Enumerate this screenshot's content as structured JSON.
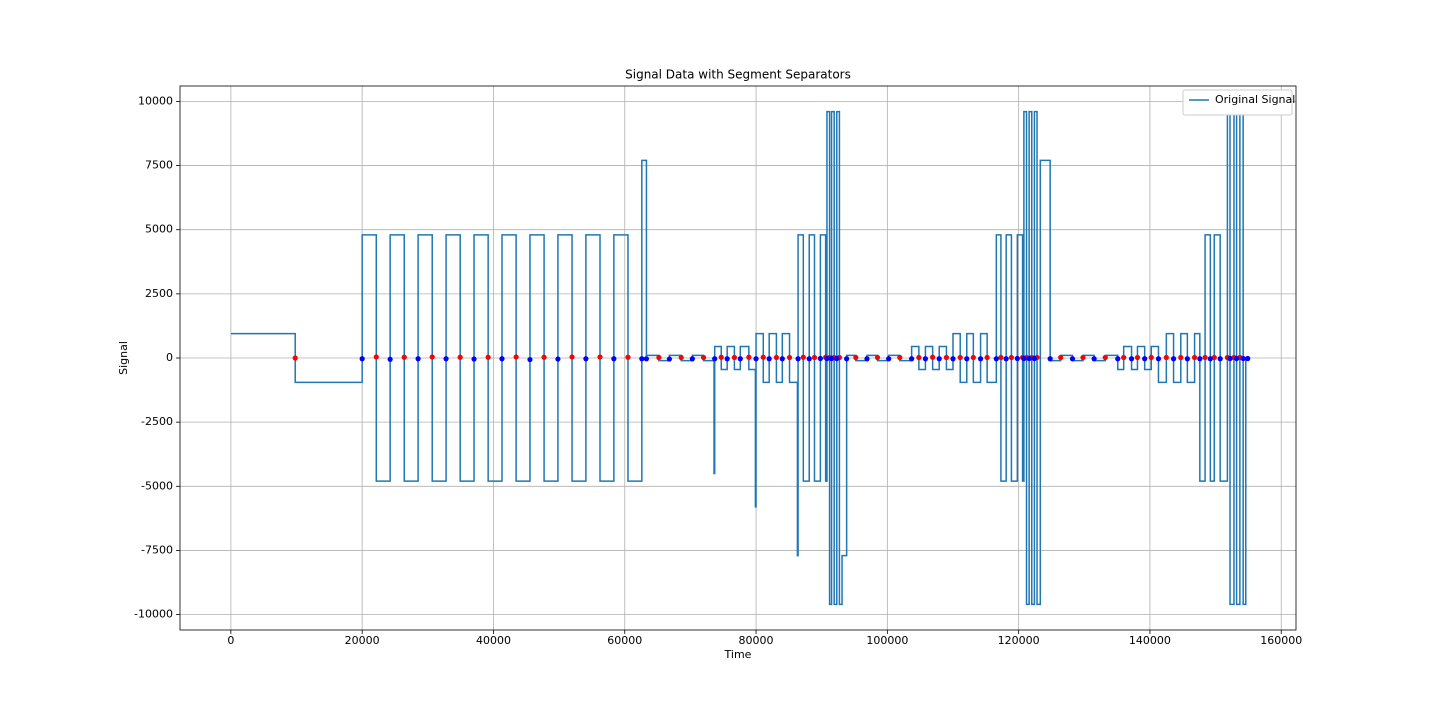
{
  "chart_data": {
    "type": "line",
    "title": "Signal Data with Segment Separators",
    "x_label": "Time",
    "y_label": "Signal",
    "drawstyle": "steps-post",
    "grid": true,
    "legend": "upper right",
    "xlim": [
      -7750,
      162250
    ],
    "ylim": [
      -10600,
      10600
    ],
    "xticks": [
      0,
      20000,
      40000,
      60000,
      80000,
      100000,
      120000,
      140000,
      160000
    ],
    "yticks": [
      -10000,
      -7500,
      -5000,
      -2500,
      0,
      2500,
      5000,
      7500,
      10000
    ],
    "series": [
      {
        "name": "Original Signal",
        "color": "#1f77b4",
        "x": [
          0,
          9800,
          20000,
          22150,
          24260,
          26410,
          28520,
          30670,
          32780,
          34930,
          37040,
          39190,
          41300,
          43450,
          45560,
          47710,
          49820,
          51970,
          54080,
          56230,
          58340,
          60490,
          62600,
          63300,
          65200,
          66800,
          68600,
          70300,
          72000,
          73600,
          73700,
          74700,
          75600,
          76700,
          77600,
          78900,
          79900,
          80000,
          81100,
          82000,
          83100,
          84000,
          85100,
          86300,
          86400,
          87200,
          88100,
          88900,
          89800,
          90600,
          90800,
          91200,
          91500,
          91900,
          92300,
          92700,
          93100,
          93800,
          95200,
          96900,
          98500,
          100200,
          101900,
          103700,
          104800,
          105800,
          106900,
          107900,
          109000,
          110000,
          111100,
          112100,
          113100,
          114200,
          115200,
          116600,
          117300,
          118100,
          118900,
          119800,
          120600,
          120800,
          121200,
          121600,
          122000,
          122400,
          122800,
          123300,
          124800,
          126400,
          128200,
          129800,
          131500,
          133200,
          135100,
          136000,
          137200,
          138100,
          139200,
          140200,
          141300,
          142500,
          143600,
          144700,
          145700,
          146800,
          147600,
          148400,
          149200,
          149800,
          150700,
          151800,
          152200,
          152800,
          153200,
          153700,
          154200,
          154600,
          155000
        ],
        "values": [
          950,
          -950,
          4800,
          -4800,
          4800,
          -4800,
          4800,
          -4800,
          4800,
          -4800,
          4800,
          -4800,
          4800,
          -4800,
          4800,
          -4800,
          4800,
          -4800,
          4800,
          -4800,
          4800,
          -4800,
          7700,
          100,
          -100,
          100,
          -100,
          100,
          -100,
          -4500,
          450,
          -450,
          450,
          -450,
          450,
          -450,
          -5800,
          950,
          -950,
          950,
          -950,
          950,
          -950,
          -7700,
          4800,
          -4800,
          4800,
          -4800,
          4800,
          -4800,
          9600,
          -9600,
          9600,
          -9600,
          9600,
          -9600,
          -7700,
          100,
          -100,
          100,
          -100,
          100,
          -100,
          450,
          -450,
          450,
          -450,
          450,
          -450,
          950,
          -950,
          950,
          -950,
          950,
          -950,
          4800,
          -4800,
          4800,
          -4800,
          4800,
          -4800,
          9600,
          -9600,
          9600,
          -9600,
          9600,
          -9600,
          7700,
          -100,
          100,
          -100,
          100,
          -100,
          100,
          -450,
          450,
          -450,
          450,
          -450,
          450,
          -950,
          950,
          -950,
          950,
          -950,
          950,
          -4800,
          4800,
          -4800,
          4800,
          -4800,
          9600,
          -9600,
          9600,
          -9600,
          9600,
          -9600,
          0,
          0
        ]
      },
      {
        "color": "red",
        "marker": "o",
        "x": [
          9800,
          22150,
          26410,
          30670,
          34930,
          39190,
          43450,
          47710,
          51970,
          56230,
          60490,
          65200,
          68600,
          72000,
          74700,
          76700,
          78900,
          81100,
          83100,
          85100,
          87200,
          88900,
          90600,
          91200,
          91900,
          92700,
          95200,
          98500,
          101900,
          104800,
          106900,
          109000,
          111100,
          113100,
          115200,
          117300,
          118900,
          120600,
          121200,
          122000,
          122800,
          126400,
          129800,
          133200,
          136000,
          138100,
          140200,
          142500,
          144700,
          146800,
          148400,
          149800,
          151800,
          152800,
          153700
        ],
        "values": [
          0,
          40,
          30,
          40,
          30,
          30,
          40,
          30,
          40,
          40,
          30,
          20,
          20,
          20,
          30,
          20,
          30,
          30,
          20,
          20,
          30,
          20,
          30,
          20,
          20,
          20,
          20,
          20,
          20,
          20,
          30,
          20,
          20,
          20,
          20,
          20,
          20,
          20,
          20,
          20,
          20,
          20,
          20,
          20,
          20,
          20,
          20,
          20,
          20,
          20,
          20,
          20,
          20,
          20,
          20
        ]
      },
      {
        "color": "blue",
        "marker": "o",
        "x": [
          20000,
          24260,
          28520,
          32780,
          37040,
          41300,
          45560,
          49820,
          54080,
          58340,
          62600,
          63300,
          66800,
          70300,
          73700,
          75600,
          77600,
          80000,
          82000,
          84000,
          86400,
          88100,
          89800,
          90800,
          91500,
          92300,
          93800,
          96900,
          100200,
          103700,
          105800,
          107900,
          110000,
          112100,
          114200,
          116600,
          118100,
          119800,
          120800,
          121600,
          122400,
          124800,
          128200,
          131500,
          135100,
          137200,
          139200,
          141300,
          143600,
          145700,
          147600,
          149200,
          150700,
          152200,
          153200,
          154200,
          154900
        ],
        "values": [
          -30,
          -50,
          -30,
          -30,
          -40,
          -30,
          -60,
          -40,
          -30,
          -30,
          -30,
          -30,
          -40,
          -30,
          -30,
          -30,
          -30,
          -30,
          -30,
          -30,
          -30,
          -30,
          -20,
          -20,
          -20,
          -20,
          -30,
          -30,
          -30,
          -30,
          -30,
          -30,
          -30,
          -30,
          -30,
          -30,
          -30,
          -20,
          -20,
          -20,
          -20,
          -30,
          -30,
          -30,
          -30,
          -30,
          -30,
          -30,
          -30,
          -30,
          -30,
          -30,
          -30,
          -20,
          -20,
          -20,
          -20
        ]
      }
    ]
  }
}
